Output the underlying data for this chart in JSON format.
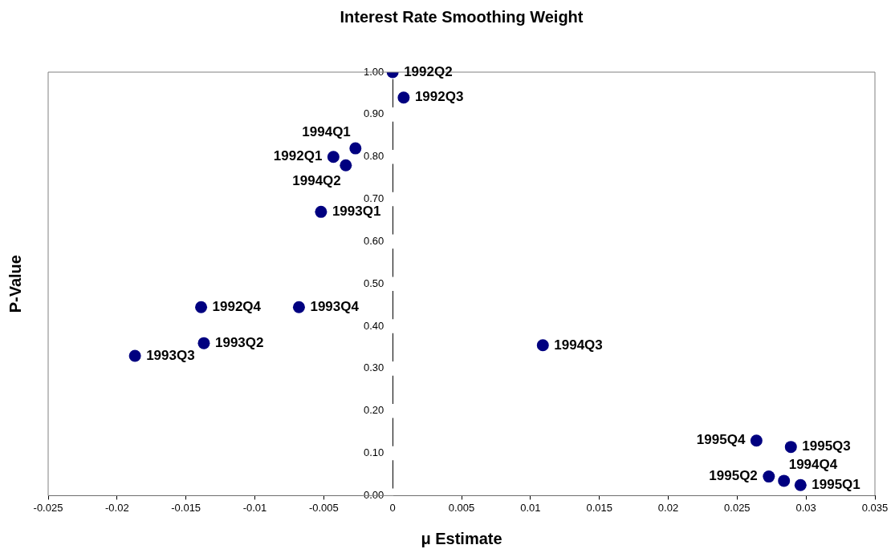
{
  "chart_data": {
    "type": "scatter",
    "title": "Interest Rate Smoothing Weight",
    "xlabel": "μ Estimate",
    "ylabel": "P-Value",
    "x": [
      0,
      0.0008,
      -0.0027,
      -0.0043,
      -0.0034,
      -0.0052,
      -0.0068,
      -0.0139,
      -0.0137,
      -0.0187,
      0.0109,
      0.0264,
      0.0289,
      0.0273,
      0.0284,
      0.0296
    ],
    "series": [
      {
        "color": "#000080",
        "values": [
          1.0,
          0.94,
          0.82,
          0.8,
          0.78,
          0.67,
          0.445,
          0.445,
          0.36,
          0.33,
          0.355,
          0.13,
          0.115,
          0.045,
          0.035,
          0.025
        ]
      }
    ],
    "marker": "circle",
    "grid": false,
    "legend": false,
    "xlim": [
      -0.025,
      0.035
    ],
    "xticks": [
      -0.025,
      -0.02,
      -0.015,
      -0.01,
      -0.005,
      0,
      0.005,
      0.01,
      0.015,
      0.02,
      0.025,
      0.03,
      0.035
    ],
    "ylim": [
      0,
      1
    ],
    "yticks": [
      {
        "value": 0,
        "label": "0.00"
      },
      {
        "value": 0.1,
        "label": "0.10"
      },
      {
        "value": 0.2,
        "label": "0.20"
      },
      {
        "value": 0.3,
        "label": "0.30"
      },
      {
        "value": 0.4,
        "label": "0.40"
      },
      {
        "value": 0.5,
        "label": "0.50"
      },
      {
        "value": 0.6,
        "label": "0.60"
      },
      {
        "value": 0.7,
        "label": "0.70"
      },
      {
        "value": 0.8,
        "label": "0.80"
      },
      {
        "value": 0.9,
        "label": "0.90"
      },
      {
        "value": 1,
        "label": "1.00"
      }
    ],
    "annotations": [
      {
        "text": "1992Q2",
        "x": 0,
        "y": 1.0
      },
      {
        "text": "1992Q3",
        "x": 0.0008,
        "y": 0.94
      },
      {
        "text": "1994Q1",
        "x": -0.0027,
        "y": 0.82
      },
      {
        "text": "1992Q1",
        "x": -0.0043,
        "y": 0.8
      },
      {
        "text": "1994Q2",
        "x": -0.0034,
        "y": 0.78
      },
      {
        "text": "1993Q1",
        "x": -0.0052,
        "y": 0.67
      },
      {
        "text": "1993Q4",
        "x": -0.0068,
        "y": 0.445
      },
      {
        "text": "1992Q4",
        "x": -0.0139,
        "y": 0.445
      },
      {
        "text": "1993Q2",
        "x": -0.0137,
        "y": 0.36
      },
      {
        "text": "1993Q3",
        "x": -0.0187,
        "y": 0.33
      },
      {
        "text": "1994Q3",
        "x": 0.0109,
        "y": 0.355
      },
      {
        "text": "1995Q4",
        "x": 0.0264,
        "y": 0.13
      },
      {
        "text": "1995Q3",
        "x": 0.0289,
        "y": 0.115
      },
      {
        "text": "1995Q2",
        "x": 0.0273,
        "y": 0.045
      },
      {
        "text": "1994Q4",
        "x": 0.0284,
        "y": 0.035
      },
      {
        "text": "1995Q1",
        "x": 0.0296,
        "y": 0.025
      }
    ]
  }
}
